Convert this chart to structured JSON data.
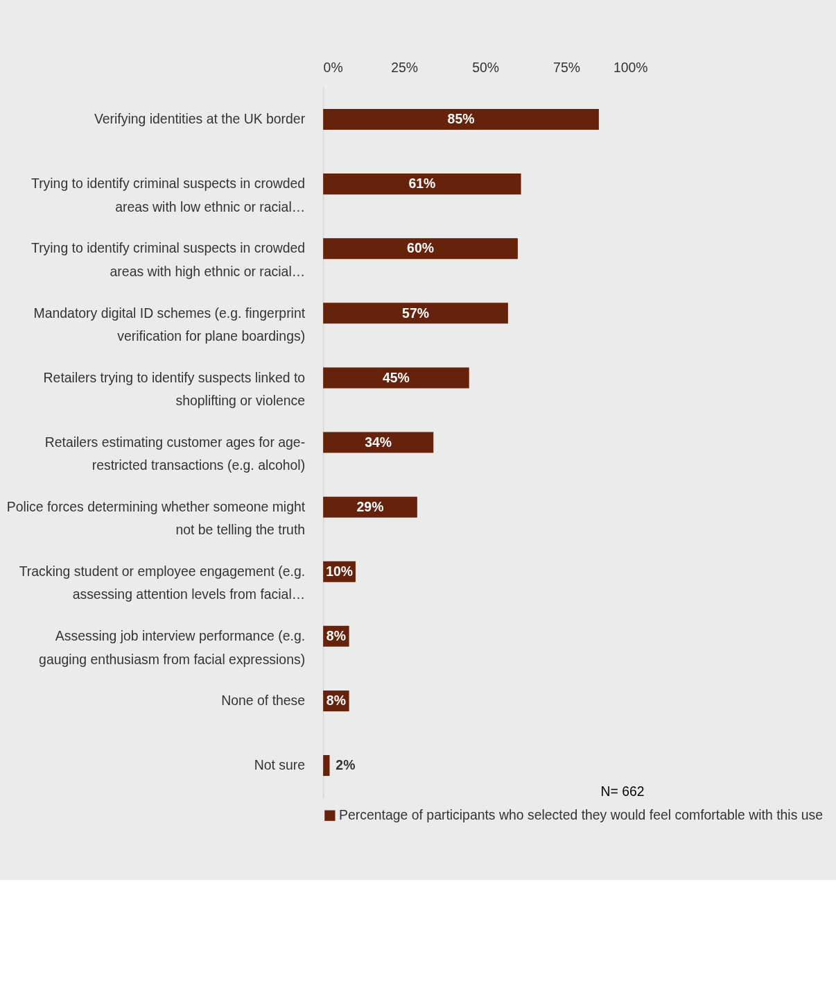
{
  "chart_data": {
    "type": "bar",
    "orientation": "horizontal",
    "categories": [
      "Verifying identities at the UK border",
      "Trying to identify criminal suspects in crowded areas with low ethnic or racial…",
      "Trying to identify criminal suspects in crowded areas with high ethnic or racial…",
      "Mandatory digital ID schemes (e.g. fingerprint verification for plane boardings)",
      "Retailers trying to identify suspects linked to shoplifting or violence",
      "Retailers estimating customer ages for age-restricted transactions (e.g. alcohol)",
      "Police forces determining whether someone might not be telling the truth",
      "Tracking student or employee engagement (e.g. assessing attention levels from facial…",
      "Assessing job interview performance (e.g. gauging enthusiasm from facial expressions)",
      "None of these",
      "Not sure"
    ],
    "series": [
      {
        "name": "Percentage of participants who selected they would feel comfortable with this use",
        "color": "#66220a",
        "values": [
          85,
          61,
          60,
          57,
          45,
          34,
          29,
          10,
          8,
          8,
          2
        ],
        "value_labels": [
          "85%",
          "61%",
          "60%",
          "57%",
          "45%",
          "34%",
          "29%",
          "10%",
          "8%",
          "8%",
          "2%"
        ]
      }
    ],
    "xlim": [
      0,
      100
    ],
    "xticks": [
      {
        "value": 0,
        "label": "0%"
      },
      {
        "value": 25,
        "label": "25%"
      },
      {
        "value": 50,
        "label": "50%"
      },
      {
        "value": 75,
        "label": "75%"
      },
      {
        "value": 100,
        "label": "100%"
      }
    ],
    "grid": false,
    "legend": "bottom",
    "annotations": [
      "N= 662"
    ]
  }
}
